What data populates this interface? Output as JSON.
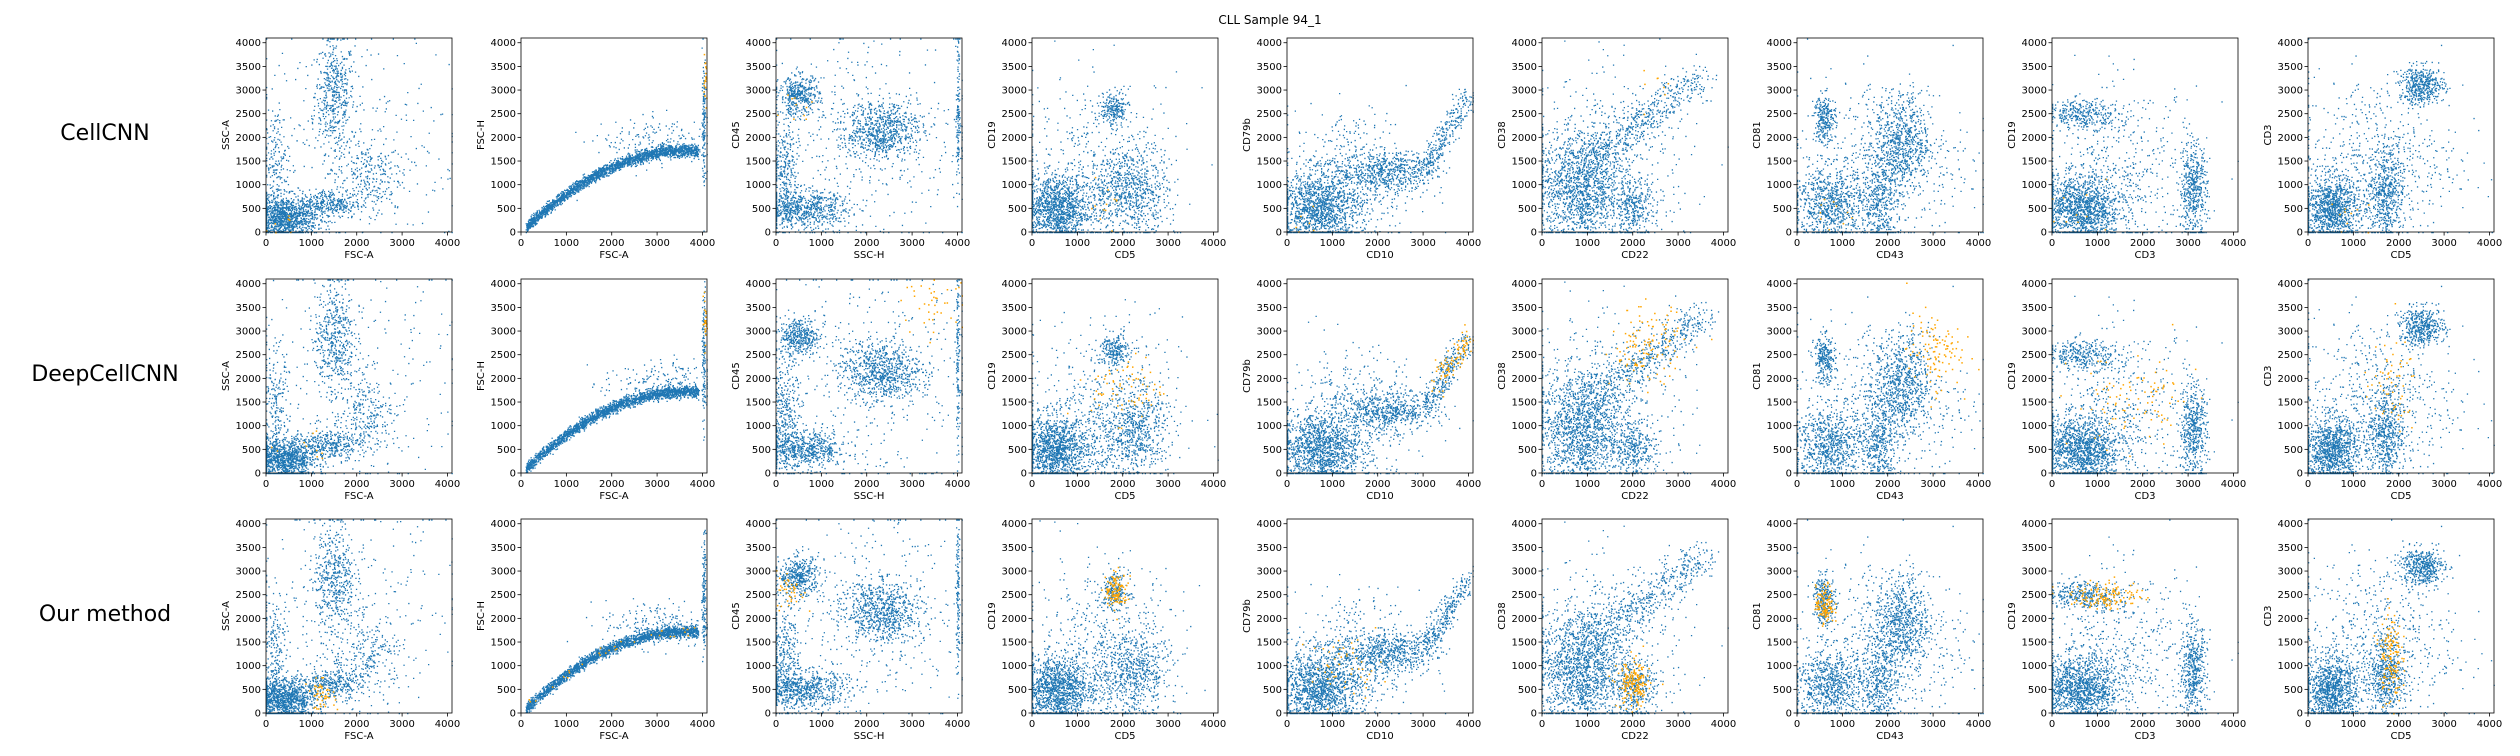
{
  "suptitle": "CLL Sample 94_1",
  "rows": [
    "CellCNN",
    "DeepCellCNN",
    "Our method"
  ],
  "colors": {
    "population": "#1f77b4",
    "highlight": "#ffa500"
  },
  "chart_data": {
    "type": "scatter",
    "grid": false,
    "legend": "none",
    "xlim": [
      0,
      4100
    ],
    "ylim": [
      0,
      4100
    ],
    "ticks": [
      0,
      500,
      1000,
      1500,
      2000,
      2500,
      3000,
      3500,
      4000
    ],
    "xticks": [
      0,
      1000,
      2000,
      3000,
      4000
    ],
    "panels": [
      {
        "x": "FSC-A",
        "y": "SSC-A",
        "clusters": [
          {
            "cx": 1500,
            "cy": 2900,
            "sx": 220,
            "sy": 600,
            "w": 0.18
          },
          {
            "cx": 400,
            "cy": 300,
            "sx": 350,
            "sy": 220,
            "w": 0.42
          },
          {
            "cx": 1400,
            "cy": 600,
            "sx": 350,
            "sy": 150,
            "w": 0.12
          },
          {
            "cx": 200,
            "cy": 1300,
            "sx": 150,
            "sy": 700,
            "w": 0.08
          },
          {
            "cx": 2200,
            "cy": 1200,
            "sx": 400,
            "sy": 400,
            "w": 0.1
          },
          {
            "cx": 2000,
            "cy": 2000,
            "sx": 1200,
            "sy": 1200,
            "w": 0.1
          }
        ],
        "hl": [
          {
            "cx": 200,
            "cy": 200,
            "sx": 200,
            "sy": 150
          },
          {
            "cx": 1000,
            "cy": 400,
            "sx": 300,
            "sy": 200
          },
          {
            "cx": 1200,
            "cy": 400,
            "sx": 150,
            "sy": 150
          }
        ]
      },
      {
        "x": "FSC-A",
        "y": "FSC-H",
        "clusters": [
          {
            "curve": "fsch",
            "w": 0.88
          },
          {
            "cx": 4020,
            "cy": 2400,
            "sx": 20,
            "sy": 700,
            "w": 0.05
          },
          {
            "cx": 3000,
            "cy": 1900,
            "sx": 600,
            "sy": 250,
            "w": 0.07
          }
        ],
        "hl": [
          {
            "cx": 4050,
            "cy": 3200,
            "sx": 20,
            "sy": 300
          },
          {
            "cx": 4050,
            "cy": 3200,
            "sx": 20,
            "sy": 300
          },
          {
            "curve": "fsch",
            "sx": 0,
            "sy": 0
          }
        ]
      },
      {
        "x": "SSC-H",
        "y": "CD45",
        "clusters": [
          {
            "cx": 500,
            "cy": 2900,
            "sx": 220,
            "sy": 200,
            "w": 0.15
          },
          {
            "cx": 2300,
            "cy": 2300,
            "sx": 450,
            "sy": 250,
            "w": 0.18
          },
          {
            "cx": 2300,
            "cy": 1900,
            "sx": 400,
            "sy": 200,
            "w": 0.1
          },
          {
            "cx": 600,
            "cy": 500,
            "sx": 500,
            "sy": 200,
            "w": 0.25
          },
          {
            "cx": 200,
            "cy": 1200,
            "sx": 150,
            "sy": 600,
            "w": 0.12
          },
          {
            "cx": 4000,
            "cy": 2500,
            "sx": 20,
            "sy": 900,
            "w": 0.05
          },
          {
            "cx": 2000,
            "cy": 2000,
            "sx": 1200,
            "sy": 1200,
            "w": 0.15
          }
        ],
        "hl": [
          {
            "cx": 400,
            "cy": 2700,
            "sx": 200,
            "sy": 200
          },
          {
            "cx": 3500,
            "cy": 3600,
            "sx": 350,
            "sy": 250
          },
          {
            "cx": 300,
            "cy": 2600,
            "sx": 150,
            "sy": 200
          }
        ]
      },
      {
        "x": "CD5",
        "y": "CD19",
        "clusters": [
          {
            "cx": 500,
            "cy": 500,
            "sx": 350,
            "sy": 350,
            "w": 0.45
          },
          {
            "cx": 1800,
            "cy": 2600,
            "sx": 150,
            "sy": 180,
            "w": 0.08
          },
          {
            "cx": 2300,
            "cy": 900,
            "sx": 350,
            "sy": 450,
            "w": 0.2
          },
          {
            "cx": 1500,
            "cy": 700,
            "sx": 500,
            "sy": 500,
            "w": 0.12
          },
          {
            "cx": 1500,
            "cy": 1500,
            "sx": 900,
            "sy": 900,
            "w": 0.15
          }
        ],
        "hl": [
          {
            "cx": 1600,
            "cy": 600,
            "sx": 200,
            "sy": 300
          },
          {
            "cx": 2100,
            "cy": 1800,
            "sx": 400,
            "sy": 350
          },
          {
            "cx": 1850,
            "cy": 2600,
            "sx": 120,
            "sy": 180
          }
        ]
      },
      {
        "x": "CD10",
        "y": "CD79b",
        "clusters": [
          {
            "cx": 700,
            "cy": 500,
            "sx": 450,
            "sy": 400,
            "w": 0.5
          },
          {
            "cx": 2200,
            "cy": 1300,
            "sx": 500,
            "sy": 200,
            "w": 0.2
          },
          {
            "line": [
              3000,
              1300,
              4000,
              2900
            ],
            "s": 120,
            "w": 0.12
          },
          {
            "cx": 1500,
            "cy": 1200,
            "sx": 700,
            "sy": 700,
            "w": 0.18
          }
        ],
        "hl": [
          {
            "cx": 500,
            "cy": 300,
            "sx": 300,
            "sy": 250
          },
          {
            "line": [
              3200,
              1800,
              4000,
              2900
            ],
            "s": 120
          },
          {
            "cx": 1300,
            "cy": 1000,
            "sx": 400,
            "sy": 300
          }
        ]
      },
      {
        "x": "CD22",
        "y": "CD38",
        "clusters": [
          {
            "cx": 800,
            "cy": 900,
            "sx": 450,
            "sy": 600,
            "w": 0.5
          },
          {
            "line": [
              1000,
              1500,
              3500,
              3300
            ],
            "s": 200,
            "w": 0.2
          },
          {
            "cx": 2000,
            "cy": 500,
            "sx": 250,
            "sy": 300,
            "w": 0.12
          },
          {
            "cx": 1500,
            "cy": 1500,
            "sx": 900,
            "sy": 900,
            "w": 0.18
          }
        ],
        "hl": [
          {
            "cx": 2500,
            "cy": 3000,
            "sx": 300,
            "sy": 250
          },
          {
            "cx": 2300,
            "cy": 2700,
            "sx": 400,
            "sy": 400
          },
          {
            "cx": 2000,
            "cy": 600,
            "sx": 180,
            "sy": 250
          }
        ]
      },
      {
        "x": "CD43",
        "y": "CD81",
        "clusters": [
          {
            "cx": 600,
            "cy": 2400,
            "sx": 120,
            "sy": 250,
            "w": 0.1
          },
          {
            "cx": 700,
            "cy": 600,
            "sx": 400,
            "sy": 400,
            "w": 0.3
          },
          {
            "cx": 1800,
            "cy": 600,
            "sx": 200,
            "sy": 500,
            "w": 0.15
          },
          {
            "cx": 2300,
            "cy": 1900,
            "sx": 300,
            "sy": 500,
            "w": 0.25
          },
          {
            "cx": 2000,
            "cy": 1500,
            "sx": 900,
            "sy": 900,
            "w": 0.2
          }
        ],
        "hl": [
          {
            "cx": 600,
            "cy": 400,
            "sx": 300,
            "sy": 250
          },
          {
            "cx": 3000,
            "cy": 2600,
            "sx": 300,
            "sy": 400
          },
          {
            "cx": 600,
            "cy": 2300,
            "sx": 100,
            "sy": 200
          }
        ]
      },
      {
        "x": "CD3",
        "y": "CD19",
        "clusters": [
          {
            "cx": 600,
            "cy": 500,
            "sx": 450,
            "sy": 350,
            "w": 0.5
          },
          {
            "cx": 700,
            "cy": 2500,
            "sx": 400,
            "sy": 150,
            "w": 0.12
          },
          {
            "cx": 3100,
            "cy": 900,
            "sx": 150,
            "sy": 500,
            "w": 0.18
          },
          {
            "cx": 1500,
            "cy": 1200,
            "sx": 900,
            "sy": 900,
            "w": 0.2
          }
        ],
        "hl": [
          {
            "cx": 700,
            "cy": 300,
            "sx": 400,
            "sy": 250
          },
          {
            "cx": 1800,
            "cy": 1500,
            "sx": 700,
            "sy": 500
          },
          {
            "cx": 1200,
            "cy": 2500,
            "sx": 400,
            "sy": 150
          }
        ]
      },
      {
        "x": "CD5",
        "y": "CD3",
        "clusters": [
          {
            "cx": 2500,
            "cy": 3100,
            "sx": 250,
            "sy": 200,
            "w": 0.18
          },
          {
            "cx": 500,
            "cy": 500,
            "sx": 300,
            "sy": 350,
            "w": 0.4
          },
          {
            "cx": 1700,
            "cy": 800,
            "sx": 200,
            "sy": 500,
            "w": 0.2
          },
          {
            "cx": 1500,
            "cy": 1500,
            "sx": 900,
            "sy": 900,
            "w": 0.22
          }
        ],
        "hl": [
          {
            "cx": 800,
            "cy": 300,
            "sx": 300,
            "sy": 250
          },
          {
            "cx": 1800,
            "cy": 1800,
            "sx": 300,
            "sy": 500
          },
          {
            "cx": 1800,
            "cy": 1200,
            "sx": 120,
            "sy": 500
          }
        ]
      }
    ],
    "highlight_counts": [
      [
        8,
        20,
        10,
        12,
        6,
        8,
        10,
        10,
        10
      ],
      [
        10,
        25,
        40,
        70,
        90,
        120,
        110,
        90,
        60
      ],
      [
        50,
        30,
        40,
        120,
        50,
        180,
        120,
        140,
        140
      ]
    ]
  }
}
